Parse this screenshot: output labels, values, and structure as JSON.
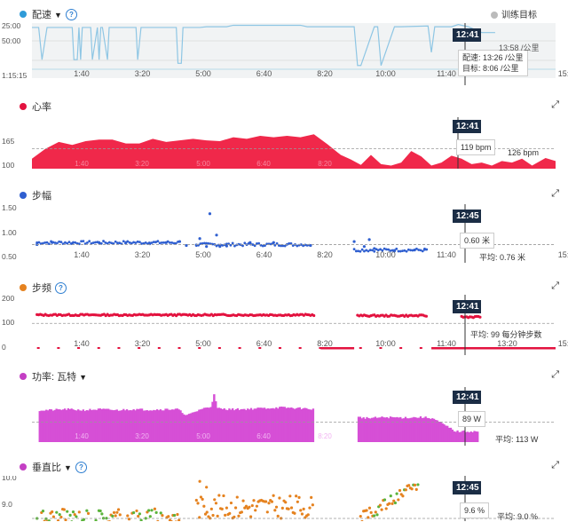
{
  "chart_data": [
    {
      "type": "line",
      "title": "配速",
      "title_has_dropdown": true,
      "title_has_help": true,
      "legend_label": "训练目标",
      "color": "#8ec6e4",
      "dot_color": "#2f9bd8",
      "y_tick_labels": [
        "25:00",
        "50:00",
        "1:15:15"
      ],
      "ylim": [
        0,
        75.25
      ],
      "y_inverted": true,
      "x_tick_labels": [
        "1:40",
        "3:20",
        "5:00",
        "6:40",
        "8:20",
        "10:00",
        "11:40",
        "13:20",
        "15:00"
      ],
      "x": [
        0,
        0.2,
        0.3,
        0.45,
        1.2,
        1.25,
        1.35,
        1.4,
        1.45,
        1.5,
        1.75,
        1.8,
        1.95,
        2.0,
        2.05,
        2.1,
        2.25,
        2.3,
        3.1,
        3.15,
        3.25,
        3.3,
        4.3,
        4.35,
        4.45,
        4.5,
        5.0,
        5.2,
        5.8,
        6.0,
        8.0,
        8.2,
        8.5,
        9.6,
        9.7,
        9.8,
        10.2,
        10.3,
        10.4,
        10.8,
        11.0,
        11.8,
        11.9,
        12.0,
        12.4,
        12.5,
        12.7,
        13.0,
        13.4,
        13.8
      ],
      "y": [
        6,
        6,
        50,
        6,
        6,
        50,
        50,
        6,
        50,
        6,
        6,
        50,
        6,
        50,
        6,
        6,
        50,
        6,
        6,
        50,
        6,
        6,
        6,
        55,
        55,
        6,
        6,
        5,
        5,
        3,
        3,
        5,
        5,
        5,
        58,
        58,
        5,
        5,
        58,
        5,
        5,
        4,
        40,
        5,
        5,
        5,
        2,
        5,
        13,
        13
      ],
      "x_min": 0,
      "x_max": 15.6,
      "tooltip_time": "12:41",
      "tooltip_lines": [
        "配速: 13:26 /公里",
        "目标: 8:06 /公里"
      ],
      "partial_label": "13:58 /公里"
    },
    {
      "type": "area",
      "title": "心率",
      "color": "#f0284a",
      "dot_color": "#e3123f",
      "y_tick_labels": [
        "165",
        "100"
      ],
      "ylim": [
        100,
        165
      ],
      "x_min": 0,
      "x_max": 15.6,
      "x": [
        0,
        0.4,
        0.8,
        1.2,
        1.6,
        2.0,
        2.4,
        2.8,
        3.2,
        3.6,
        4.0,
        4.4,
        4.8,
        5.2,
        5.6,
        6.0,
        6.4,
        6.8,
        7.2,
        7.6,
        8.0,
        8.4,
        8.8,
        9.2,
        9.5,
        9.8,
        10.1,
        10.4,
        10.7,
        11.0,
        11.3,
        11.6,
        11.9,
        12.2,
        12.5,
        12.8,
        13.1,
        13.4,
        13.7,
        14.0,
        14.3,
        14.6,
        14.9,
        15.3,
        15.6
      ],
      "y": [
        113,
        126,
        135,
        131,
        136,
        138,
        138,
        133,
        133,
        139,
        135,
        137,
        139,
        137,
        136,
        141,
        139,
        143,
        141,
        143,
        141,
        145,
        132,
        118,
        112,
        105,
        118,
        106,
        104,
        108,
        123,
        116,
        104,
        108,
        117,
        113,
        106,
        108,
        104,
        110,
        108,
        113,
        104,
        114,
        110
      ],
      "average": 126,
      "average_label": "126 bpm",
      "tooltip_time": "12:41",
      "tooltip_lines": [
        "119 bpm"
      ]
    },
    {
      "type": "scatter",
      "title": "步幅",
      "color": "#2f5fd0",
      "dot_color": "#2f5fd0",
      "y_tick_labels": [
        "1.50",
        "1.00",
        "0.50"
      ],
      "ylim": [
        0.5,
        1.5
      ],
      "x_tick_labels": [
        "1:40",
        "3:20",
        "5:00",
        "6:40",
        "8:20",
        "10:00",
        "11:40",
        "13:20",
        "15:00"
      ],
      "x_min": 0,
      "x_max": 15.6,
      "segments": [
        {
          "x0": 0.15,
          "x1": 4.4,
          "y": 0.8
        },
        {
          "x0": 4.9,
          "x1": 8.3,
          "y": 0.76
        },
        {
          "x0": 9.6,
          "x1": 11.8,
          "y": 0.65
        }
      ],
      "x": [
        0.15,
        0.6,
        1.2,
        2.0,
        2.8,
        3.5,
        4.0,
        4.4,
        4.6,
        4.9,
        5.0,
        5.2,
        5.3,
        5.5,
        5.6,
        5.8,
        6.5,
        7.2,
        8.3,
        9.6,
        9.9,
        10.05,
        10.2,
        10.8,
        11.4,
        11.7
      ],
      "y": [
        0.76,
        0.8,
        0.78,
        0.8,
        0.8,
        0.79,
        0.8,
        0.82,
        0.74,
        0.75,
        0.88,
        0.72,
        1.38,
        0.95,
        0.72,
        0.73,
        0.8,
        0.8,
        0.74,
        0.82,
        0.72,
        0.86,
        0.68,
        0.64,
        0.65,
        0.66
      ],
      "average": 0.76,
      "average_label": "平均: 0.76 米",
      "tooltip_time": "12:45",
      "tooltip_lines": [
        "0.60 米"
      ]
    },
    {
      "type": "scatter",
      "title": "步频",
      "title_has_help": true,
      "color": "#e3123f",
      "dot_color": "#e5821f",
      "y_tick_labels": [
        "200",
        "100",
        "0"
      ],
      "ylim": [
        0,
        200
      ],
      "x_tick_labels": [
        "1:40",
        "3:20",
        "5:00",
        "6:40",
        "8:20",
        "10:00",
        "11:40",
        "13:20",
        "15:00"
      ],
      "x_min": 0,
      "x_max": 15.6,
      "segments": [
        {
          "x0": 0.15,
          "x1": 8.4,
          "y": 133
        },
        {
          "x0": 9.7,
          "x1": 11.8,
          "y": 130
        },
        {
          "x0": 12.8,
          "x1": 13.4,
          "y": 125
        }
      ],
      "average": 99,
      "average_label": "平均: 99 每分钟步数",
      "tooltip_time": "12:41"
    },
    {
      "type": "area",
      "title": "功率: 瓦特",
      "title_has_dropdown": true,
      "color": "#d64fd6",
      "dot_color": "#c43fc4",
      "ylim": [
        0,
        300
      ],
      "x_tick_labels": [
        "1:40",
        "3:20",
        "5:00",
        "6:40",
        "8:20"
      ],
      "x_min": 0,
      "x_max": 15.6,
      "x": [
        0.2,
        0.5,
        1.0,
        1.5,
        2.0,
        2.5,
        3.0,
        3.5,
        4.0,
        4.3,
        4.6,
        5.0,
        5.3,
        5.4,
        5.5,
        5.8,
        6.2,
        6.8,
        7.4,
        8.0,
        8.4,
        9.7,
        10.0,
        10.5,
        11.0,
        11.6,
        11.9,
        12.6,
        12.9,
        13.3
      ],
      "y": [
        180,
        180,
        185,
        180,
        185,
        180,
        185,
        182,
        185,
        185,
        150,
        185,
        200,
        265,
        190,
        185,
        185,
        190,
        195,
        190,
        185,
        140,
        135,
        140,
        138,
        140,
        135,
        60,
        60,
        60
      ],
      "average": 113,
      "average_label": "平均: 113 W",
      "tooltip_time": "12:41",
      "tooltip_lines": [
        "89 W"
      ]
    },
    {
      "type": "scatter",
      "title": "垂直比",
      "title_has_dropdown": true,
      "title_has_help": true,
      "color": "#e5821f",
      "dot_color": "#c43fc4",
      "y_tick_labels": [
        "10.0",
        "9.0"
      ],
      "ylim": [
        8.5,
        10.0
      ],
      "x_min": 0,
      "x_max": 15.6,
      "average": 9.0,
      "average_label": "平均: 9.0 %",
      "tooltip_time": "12:45",
      "tooltip_lines": [
        "9.6 %"
      ]
    }
  ]
}
